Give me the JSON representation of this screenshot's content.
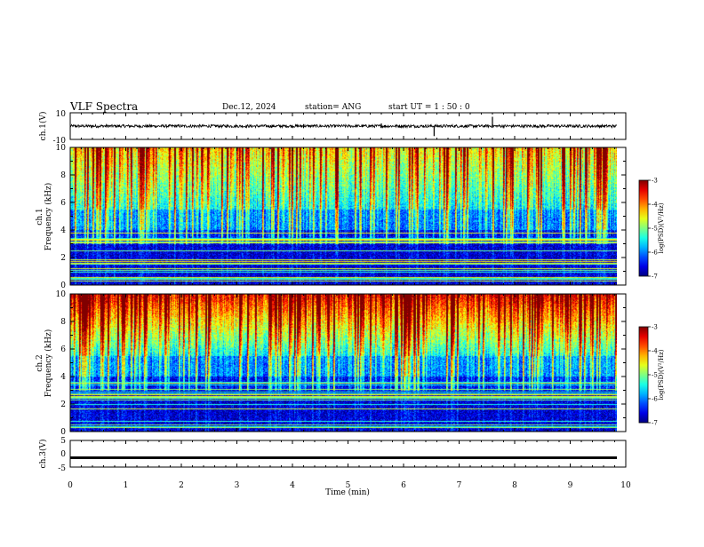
{
  "header": {
    "title": "VLF Spectra",
    "date": "Dec.12, 2024",
    "station": "station= ANG",
    "start": "start  UT =   1 : 50 : 0"
  },
  "chart_data": [
    {
      "type": "line",
      "name": "ch1-waveform",
      "ylabel": "ch.1(V)",
      "ylim": [
        -10,
        10
      ],
      "yticks": [
        "10",
        "-10"
      ],
      "xlim": [
        0,
        10
      ],
      "baseline": 0,
      "color": "#000000"
    },
    {
      "type": "heatmap",
      "name": "ch1-spectrogram",
      "ylabel_top": "ch.1",
      "ylabel": "Frequency (kHz)",
      "ylim": [
        0,
        10
      ],
      "yticks": [
        "0",
        "2",
        "4",
        "6",
        "8",
        "10"
      ],
      "xlim": [
        0,
        10
      ],
      "colorbar": {
        "label": "log(PSD)(V²/Hz)",
        "range": [
          -7,
          -3
        ],
        "ticks": [
          "-3",
          "-4",
          "-5",
          "-6",
          "-7"
        ]
      }
    },
    {
      "type": "heatmap",
      "name": "ch2-spectrogram",
      "ylabel_top": "ch.2",
      "ylabel": "Frequency (kHz)",
      "ylim": [
        0,
        10
      ],
      "yticks": [
        "0",
        "2",
        "4",
        "6",
        "8",
        "10"
      ],
      "xlim": [
        0,
        10
      ],
      "colorbar": {
        "label": "log(PSD)(V²/Hz)",
        "range": [
          -7,
          -3
        ],
        "ticks": [
          "-3",
          "-4",
          "-5",
          "-6",
          "-7"
        ]
      }
    },
    {
      "type": "line",
      "name": "ch3-waveform",
      "ylabel": "ch.3(V)",
      "ylim": [
        -5,
        5
      ],
      "yticks": [
        "5",
        "0",
        "-5"
      ],
      "xlim": [
        0,
        10
      ],
      "baseline": -1.5,
      "color": "#000000"
    }
  ],
  "xaxis": {
    "label": "Time (min)",
    "ticks": [
      "0",
      "1",
      "2",
      "3",
      "4",
      "5",
      "6",
      "7",
      "8",
      "9",
      "10"
    ]
  }
}
